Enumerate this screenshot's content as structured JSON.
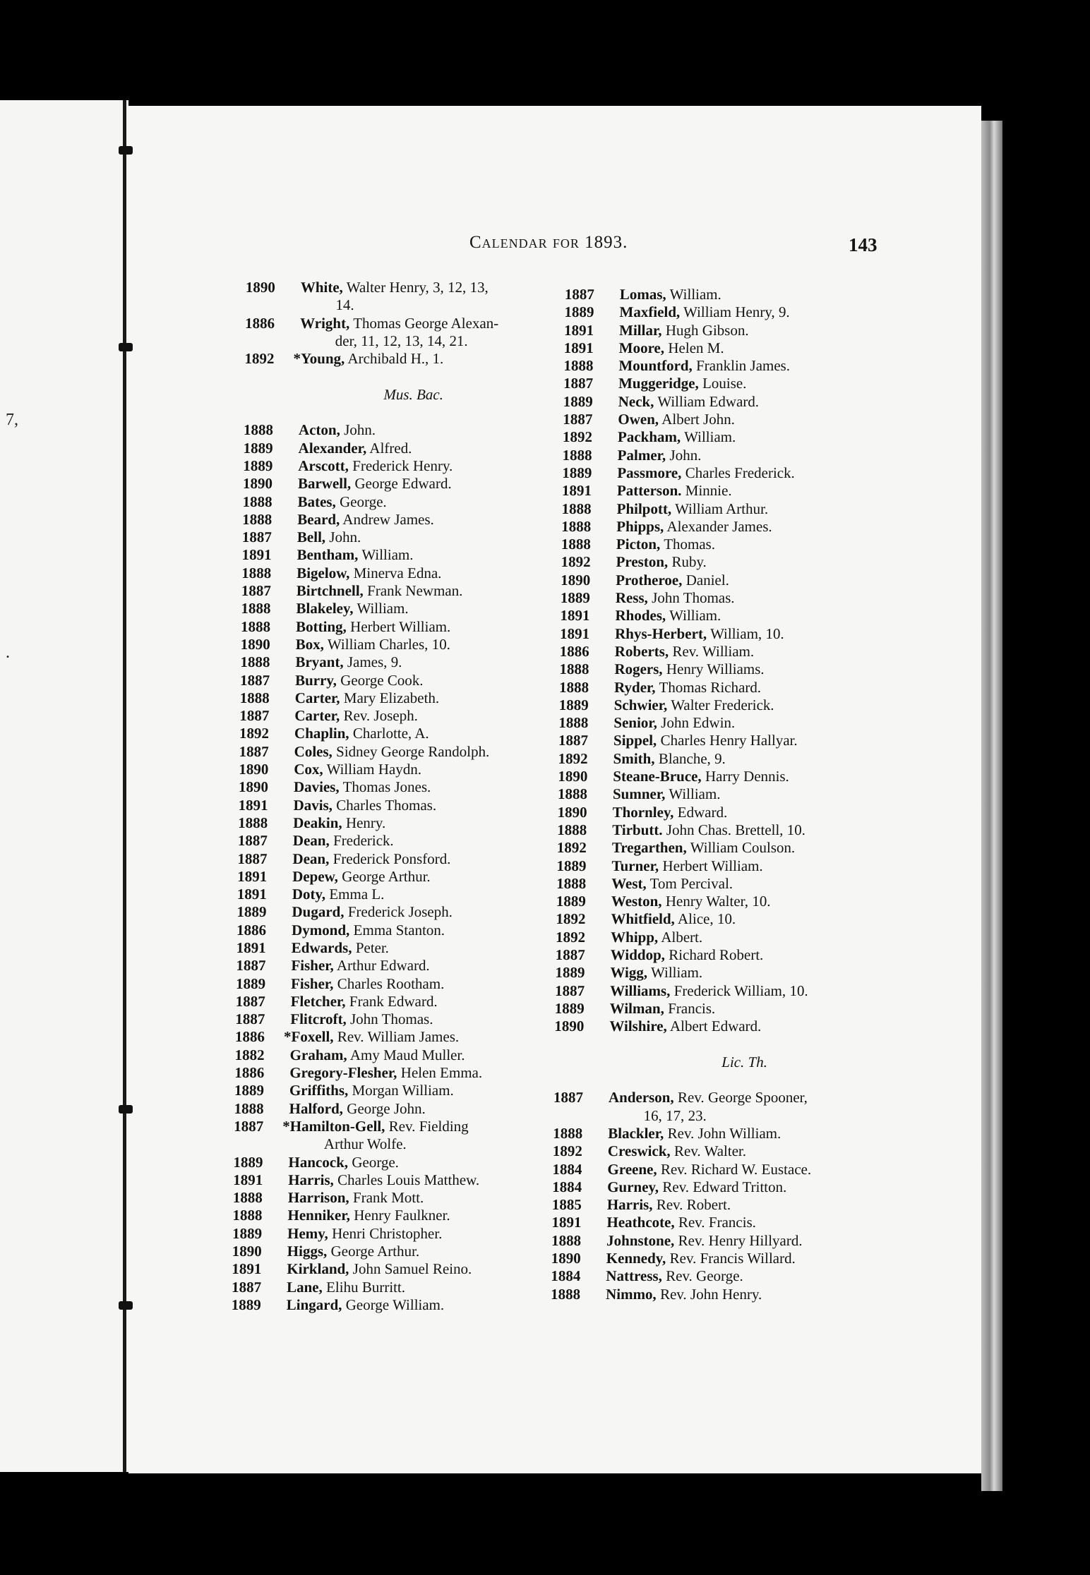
{
  "header": {
    "title": "Calendar for 1893.",
    "page_number": "143"
  },
  "margin_fragments": [
    "7,",
    "."
  ],
  "left_column": {
    "sections": [
      {
        "heading": "",
        "entries": [
          {
            "year": "1890",
            "surname": "White,",
            "rest": " Walter Henry, 3, 12, 13,",
            "cont": "14."
          },
          {
            "year": "1886",
            "surname": "Wright,",
            "rest": " Thomas George Alexan-",
            "cont": "der, 11, 12, 13, 14, 21."
          },
          {
            "year": "1892",
            "surname": "*Young,",
            "rest": " Archibald H., 1."
          }
        ]
      },
      {
        "heading": "Mus. Bac.",
        "entries": [
          {
            "year": "1888",
            "surname": "Acton,",
            "rest": " John."
          },
          {
            "year": "1889",
            "surname": "Alexander,",
            "rest": " Alfred."
          },
          {
            "year": "1889",
            "surname": "Arscott,",
            "rest": " Frederick Henry."
          },
          {
            "year": "1890",
            "surname": "Barwell,",
            "rest": " George Edward."
          },
          {
            "year": "1888",
            "surname": "Bates,",
            "rest": " George."
          },
          {
            "year": "1888",
            "surname": "Beard,",
            "rest": " Andrew James."
          },
          {
            "year": "1887",
            "surname": "Bell,",
            "rest": " John."
          },
          {
            "year": "1891",
            "surname": "Bentham,",
            "rest": " William."
          },
          {
            "year": "1888",
            "surname": "Bigelow,",
            "rest": " Minerva Edna."
          },
          {
            "year": "1887",
            "surname": "Birtchnell,",
            "rest": " Frank Newman."
          },
          {
            "year": "1888",
            "surname": "Blakeley,",
            "rest": " William."
          },
          {
            "year": "1888",
            "surname": "Botting,",
            "rest": " Herbert William."
          },
          {
            "year": "1890",
            "surname": "Box,",
            "rest": " William Charles, 10."
          },
          {
            "year": "1888",
            "surname": "Bryant,",
            "rest": " James, 9."
          },
          {
            "year": "1887",
            "surname": "Burry,",
            "rest": " George Cook."
          },
          {
            "year": "1888",
            "surname": "Carter,",
            "rest": " Mary Elizabeth."
          },
          {
            "year": "1887",
            "surname": "Carter,",
            "rest": " Rev. Joseph."
          },
          {
            "year": "1892",
            "surname": "Chaplin,",
            "rest": " Charlotte, A."
          },
          {
            "year": "1887",
            "surname": "Coles,",
            "rest": " Sidney George Randolph."
          },
          {
            "year": "1890",
            "surname": "Cox,",
            "rest": " William Haydn."
          },
          {
            "year": "1890",
            "surname": "Davies,",
            "rest": " Thomas Jones."
          },
          {
            "year": "1891",
            "surname": "Davis,",
            "rest": " Charles Thomas."
          },
          {
            "year": "1888",
            "surname": "Deakin,",
            "rest": " Henry."
          },
          {
            "year": "1887",
            "surname": "Dean,",
            "rest": " Frederick."
          },
          {
            "year": "1887",
            "surname": "Dean,",
            "rest": " Frederick Ponsford."
          },
          {
            "year": "1891",
            "surname": "Depew,",
            "rest": " George Arthur."
          },
          {
            "year": "1891",
            "surname": "Doty,",
            "rest": " Emma L."
          },
          {
            "year": "1889",
            "surname": "Dugard,",
            "rest": " Frederick Joseph."
          },
          {
            "year": "1886",
            "surname": "Dymond,",
            "rest": " Emma Stanton."
          },
          {
            "year": "1891",
            "surname": "Edwards,",
            "rest": " Peter."
          },
          {
            "year": "1887",
            "surname": "Fisher,",
            "rest": " Arthur Edward."
          },
          {
            "year": "1889",
            "surname": "Fisher,",
            "rest": " Charles Rootham."
          },
          {
            "year": "1887",
            "surname": "Fletcher,",
            "rest": " Frank Edward."
          },
          {
            "year": "1887",
            "surname": "Flitcroft,",
            "rest": " John Thomas."
          },
          {
            "year": "1886",
            "surname": "*Foxell,",
            "rest": " Rev. William James."
          },
          {
            "year": "1882",
            "surname": "Graham,",
            "rest": " Amy Maud Muller."
          },
          {
            "year": "1886",
            "surname": "Gregory-Flesher,",
            "rest": " Helen Emma."
          },
          {
            "year": "1889",
            "surname": "Griffiths,",
            "rest": " Morgan William."
          },
          {
            "year": "1888",
            "surname": "Halford,",
            "rest": " George John."
          },
          {
            "year": "1887",
            "surname": "*Hamilton-Gell,",
            "rest": " Rev. Fielding",
            "cont": "Arthur Wolfe."
          },
          {
            "year": "1889",
            "surname": "Hancock,",
            "rest": " George."
          },
          {
            "year": "1891",
            "surname": "Harris,",
            "rest": " Charles Louis Matthew."
          },
          {
            "year": "1888",
            "surname": "Harrison,",
            "rest": " Frank Mott."
          },
          {
            "year": "1888",
            "surname": "Henniker,",
            "rest": " Henry Faulkner."
          },
          {
            "year": "1889",
            "surname": "Hemy,",
            "rest": " Henri Christopher."
          },
          {
            "year": "1890",
            "surname": "Higgs,",
            "rest": " George Arthur."
          },
          {
            "year": "1891",
            "surname": "Kirkland,",
            "rest": " John Samuel Reino."
          },
          {
            "year": "1887",
            "surname": "Lane,",
            "rest": " Elihu Burritt."
          },
          {
            "year": "1889",
            "surname": "Lingard,",
            "rest": " George William."
          }
        ]
      }
    ]
  },
  "right_column": {
    "sections": [
      {
        "heading": "",
        "entries": [
          {
            "year": "1887",
            "surname": "Lomas,",
            "rest": " William."
          },
          {
            "year": "1889",
            "surname": "Maxfield,",
            "rest": " William Henry, 9."
          },
          {
            "year": "1891",
            "surname": "Millar,",
            "rest": " Hugh Gibson."
          },
          {
            "year": "1891",
            "surname": "Moore,",
            "rest": " Helen M."
          },
          {
            "year": "1888",
            "surname": "Mountford,",
            "rest": " Franklin James."
          },
          {
            "year": "1887",
            "surname": "Muggeridge,",
            "rest": " Louise."
          },
          {
            "year": "1889",
            "surname": "Neck,",
            "rest": " William Edward."
          },
          {
            "year": "1887",
            "surname": "Owen,",
            "rest": " Albert John."
          },
          {
            "year": "1892",
            "surname": "Packham,",
            "rest": " William."
          },
          {
            "year": "1888",
            "surname": "Palmer,",
            "rest": " John."
          },
          {
            "year": "1889",
            "surname": "Passmore,",
            "rest": " Charles Frederick."
          },
          {
            "year": "1891",
            "surname": "Patterson.",
            "rest": " Minnie."
          },
          {
            "year": "1888",
            "surname": "Philpott,",
            "rest": " William Arthur."
          },
          {
            "year": "1888",
            "surname": "Phipps,",
            "rest": " Alexander James."
          },
          {
            "year": "1888",
            "surname": "Picton,",
            "rest": " Thomas."
          },
          {
            "year": "1892",
            "surname": "Preston,",
            "rest": " Ruby."
          },
          {
            "year": "1890",
            "surname": "Protheroe,",
            "rest": " Daniel."
          },
          {
            "year": "1889",
            "surname": "Ress,",
            "rest": " John Thomas."
          },
          {
            "year": "1891",
            "surname": "Rhodes,",
            "rest": " William."
          },
          {
            "year": "1891",
            "surname": "Rhys-Herbert,",
            "rest": " William, 10."
          },
          {
            "year": "1886",
            "surname": "Roberts,",
            "rest": " Rev. William."
          },
          {
            "year": "1888",
            "surname": "Rogers,",
            "rest": " Henry Williams."
          },
          {
            "year": "1888",
            "surname": "Ryder,",
            "rest": " Thomas Richard."
          },
          {
            "year": "1889",
            "surname": "Schwier,",
            "rest": " Walter Frederick."
          },
          {
            "year": "1888",
            "surname": "Senior,",
            "rest": " John Edwin."
          },
          {
            "year": "1887",
            "surname": "Sippel,",
            "rest": " Charles Henry Hallyar."
          },
          {
            "year": "1892",
            "surname": "Smith,",
            "rest": " Blanche, 9."
          },
          {
            "year": "1890",
            "surname": "Steane-Bruce,",
            "rest": " Harry Dennis."
          },
          {
            "year": "1888",
            "surname": "Sumner,",
            "rest": " William."
          },
          {
            "year": "1890",
            "surname": "Thornley,",
            "rest": " Edward."
          },
          {
            "year": "1888",
            "surname": "Tirbutt.",
            "rest": " John Chas. Brettell, 10."
          },
          {
            "year": "1892",
            "surname": "Tregarthen,",
            "rest": " William Coulson."
          },
          {
            "year": "1889",
            "surname": "Turner,",
            "rest": " Herbert William."
          },
          {
            "year": "1888",
            "surname": "West,",
            "rest": " Tom Percival."
          },
          {
            "year": "1889",
            "surname": "Weston,",
            "rest": " Henry Walter, 10."
          },
          {
            "year": "1892",
            "surname": "Whitfield,",
            "rest": " Alice, 10."
          },
          {
            "year": "1892",
            "surname": "Whipp,",
            "rest": " Albert."
          },
          {
            "year": "1887",
            "surname": "Widdop,",
            "rest": " Richard Robert."
          },
          {
            "year": "1889",
            "surname": "Wigg,",
            "rest": " William."
          },
          {
            "year": "1887",
            "surname": "Williams,",
            "rest": " Frederick William, 10."
          },
          {
            "year": "1889",
            "surname": "Wilman,",
            "rest": " Francis."
          },
          {
            "year": "1890",
            "surname": "Wilshire,",
            "rest": " Albert Edward."
          }
        ]
      },
      {
        "heading": "Lic. Th.",
        "entries": [
          {
            "year": "1887",
            "surname": "Anderson,",
            "rest": " Rev. George Spooner,",
            "cont": "16, 17, 23."
          },
          {
            "year": "1888",
            "surname": "Blackler,",
            "rest": " Rev. John William."
          },
          {
            "year": "1892",
            "surname": "Creswick,",
            "rest": " Rev. Walter."
          },
          {
            "year": "1884",
            "surname": "Greene,",
            "rest": " Rev. Richard W. Eustace."
          },
          {
            "year": "1884",
            "surname": "Gurney,",
            "rest": " Rev. Edward Tritton."
          },
          {
            "year": "1885",
            "surname": "Harris,",
            "rest": " Rev. Robert."
          },
          {
            "year": "1891",
            "surname": "Heathcote,",
            "rest": " Rev. Francis."
          },
          {
            "year": "1888",
            "surname": "Johnstone,",
            "rest": " Rev. Henry Hillyard."
          },
          {
            "year": "1890",
            "surname": "Kennedy,",
            "rest": " Rev. Francis Willard."
          },
          {
            "year": "1884",
            "surname": "Nattress,",
            "rest": " Rev. George."
          },
          {
            "year": "1888",
            "surname": "Nimmo,",
            "rest": " Rev. John Henry."
          }
        ]
      }
    ]
  }
}
